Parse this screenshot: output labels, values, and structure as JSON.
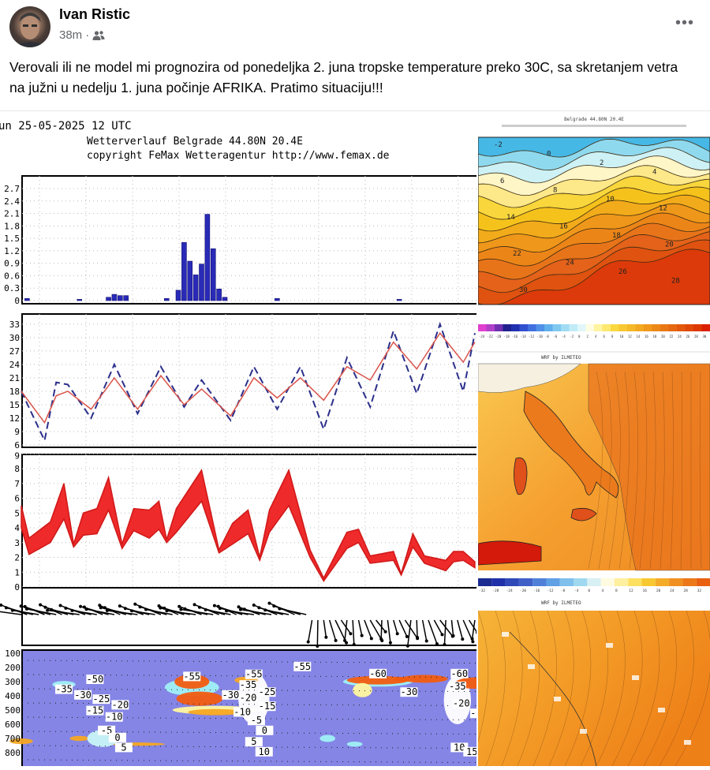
{
  "post": {
    "author": "Ivan Ristic",
    "time": "38m",
    "separator": "·",
    "audience_icon": "friends-icon",
    "more_icon": "more-icon",
    "more_label": "•••",
    "text": "Verovali ili ne model mi prognozira od ponedeljka 2. juna tropske temperature preko 30C, sa skretanjem vetra na južni u nedelju 1. juna počinje AFRIKA. Pratimo situaciju!!!"
  },
  "meteogram": {
    "run_line": "un 25-05-2025 12 UTC",
    "title_line": "Wetterverlauf Belgrade  44.80N 20.4E",
    "copyright_line": "copyright FeMax Wetteragentur http://www.femax.de"
  },
  "chart_data": [
    {
      "type": "bar",
      "ylim": [
        0,
        2.7
      ],
      "yticks": [
        "0",
        "0.3",
        "0.6",
        "0.9",
        "1.2",
        "1.5",
        "1.8",
        "2.1",
        "2.4",
        "2.7"
      ],
      "x_hours": [
        3,
        30,
        45,
        48,
        51,
        54,
        75,
        81,
        84,
        87,
        90,
        93,
        96,
        99,
        102,
        105,
        132,
        195
      ],
      "values": [
        0.05,
        0.03,
        0.08,
        0.15,
        0.12,
        0.12,
        0.05,
        0.25,
        1.4,
        0.95,
        0.62,
        0.88,
        2.08,
        1.25,
        0.28,
        0.08,
        0.05,
        0.03
      ],
      "color": "#2a2ab8"
    },
    {
      "type": "line",
      "ylim": [
        6,
        33
      ],
      "yticks": [
        "6",
        "9",
        "12",
        "15",
        "18",
        "21",
        "24",
        "27",
        "30",
        "33"
      ],
      "x_hours": [
        0,
        12,
        18,
        24,
        36,
        48,
        60,
        72,
        84,
        93,
        108,
        120,
        132,
        144,
        156,
        168,
        180,
        192,
        204,
        216,
        228,
        234
      ],
      "series": [
        {
          "style": "dashed",
          "color": "#2b2f8a",
          "values": [
            18,
            7,
            20,
            19.5,
            12,
            24,
            13,
            23.5,
            14.5,
            20.5,
            11.5,
            23.5,
            14,
            23.5,
            9.5,
            25.5,
            14.5,
            31.5,
            17.5,
            33,
            18,
            31
          ]
        },
        {
          "style": "solid",
          "color": "#d9534a",
          "values": [
            18,
            11,
            17,
            18,
            14,
            21,
            14,
            21.5,
            15,
            18.5,
            12.5,
            21,
            16.5,
            21,
            16,
            23.5,
            20.5,
            29,
            23,
            31,
            24.5,
            29
          ]
        }
      ]
    },
    {
      "type": "area",
      "ylim": [
        0,
        9
      ],
      "yticks": [
        "0",
        "1",
        "2",
        "3",
        "4",
        "5",
        "6",
        "7",
        "8",
        "9"
      ],
      "x_hours": [
        0,
        4,
        15,
        22,
        27,
        32,
        39,
        45,
        52,
        58,
        66,
        71,
        75,
        80,
        93,
        102,
        109,
        117,
        123,
        128,
        138,
        149,
        156,
        168,
        174,
        180,
        192,
        196,
        202,
        208,
        219,
        223,
        228,
        234
      ],
      "upper": [
        5.5,
        3.3,
        4.4,
        7,
        2.9,
        5,
        5.3,
        7.4,
        2.9,
        5.3,
        5.2,
        5.8,
        3.2,
        5.3,
        7.9,
        2.5,
        4.3,
        5.2,
        2.0,
        5.2,
        7.9,
        2.5,
        0.6,
        3.7,
        3.9,
        2.1,
        2.4,
        0.9,
        3.6,
        2.1,
        1.8,
        2.4,
        2.4,
        1.7
      ],
      "lower": [
        4,
        2.2,
        3.0,
        4.6,
        2.7,
        3.5,
        3.6,
        5.2,
        2.6,
        3.8,
        3.3,
        3.9,
        3.0,
        3.7,
        5.8,
        2.3,
        2.9,
        3.6,
        1.8,
        3.7,
        5.5,
        2.0,
        0.4,
        2.6,
        3.0,
        1.6,
        1.8,
        0.8,
        2.7,
        1.6,
        1.1,
        1.7,
        1.8,
        1.3
      ],
      "color": "#ee2a2a"
    },
    {
      "type": "heatmap",
      "yticks": [
        "100",
        "200",
        "300",
        "400",
        "500",
        "600",
        "700",
        "800"
      ],
      "labels": [
        {
          "text": "-50",
          "t": 38,
          "p": 300
        },
        {
          "text": "-35",
          "t": 22,
          "p": 370
        },
        {
          "text": "-30",
          "t": 22,
          "p": 410
        },
        {
          "text": "-25",
          "t": 38,
          "p": 440
        },
        {
          "text": "-20",
          "t": 38,
          "p": 480
        },
        {
          "text": "-15",
          "t": 38,
          "p": 520
        },
        {
          "text": "-10",
          "t": 30,
          "p": 565
        },
        {
          "text": "-5",
          "t": 44,
          "p": 660
        },
        {
          "text": "0",
          "t": 48,
          "p": 710
        },
        {
          "text": "5",
          "t": 48,
          "p": 780
        },
        {
          "text": "-55",
          "t": 88,
          "p": 280
        },
        {
          "text": "-30",
          "t": 108,
          "p": 410
        },
        {
          "text": "-55",
          "t": 120,
          "p": 265
        },
        {
          "text": "-35",
          "t": 117,
          "p": 340
        },
        {
          "text": "-25",
          "t": 117,
          "p": 390
        },
        {
          "text": "-20",
          "t": 117,
          "p": 430
        },
        {
          "text": "-15",
          "t": 117,
          "p": 490
        },
        {
          "text": "-10",
          "t": 114,
          "p": 530
        },
        {
          "text": "-5",
          "t": 118,
          "p": 590
        },
        {
          "text": "0",
          "t": 119,
          "p": 660
        },
        {
          "text": "5",
          "t": 120,
          "p": 740
        },
        {
          "text": "10",
          "t": 122,
          "p": 810
        },
        {
          "text": "-55",
          "t": 145,
          "p": 210
        },
        {
          "text": "-60",
          "t": 184,
          "p": 260
        },
        {
          "text": "-30",
          "t": 200,
          "p": 390
        },
        {
          "text": "-60",
          "t": 226,
          "p": 260
        },
        {
          "text": "-35",
          "t": 225,
          "p": 350
        },
        {
          "text": "-20",
          "t": 227,
          "p": 470
        },
        {
          "text": "-10",
          "t": 223,
          "p": 540
        },
        {
          "text": "10",
          "t": 226,
          "p": 780
        },
        {
          "text": "15",
          "t": 226,
          "p": 810
        }
      ]
    }
  ],
  "right_panel": {
    "cross_section": {
      "header": "Belgrade  44.80N 20.4E",
      "contour_labels": [
        "-2",
        "0",
        "2",
        "4",
        "6",
        "8",
        "10",
        "12",
        "14",
        "16",
        "18",
        "20",
        "22",
        "24",
        "26",
        "28",
        "30"
      ],
      "colorbar_ticks": [
        "-24",
        "-22",
        "-20",
        "-18",
        "-16",
        "-14",
        "-12",
        "-10",
        "-8",
        "-6",
        "-4",
        "-2",
        "0",
        "2",
        "4",
        "6",
        "8",
        "10",
        "12",
        "14",
        "16",
        "18",
        "20",
        "22",
        "24",
        "26",
        "28",
        "30"
      ]
    },
    "map1": {
      "source": "WRF by ILMETEO"
    },
    "map2": {
      "source": "WRF by ILMETEO",
      "colorbar_ticks": [
        "-32",
        "-28",
        "-24",
        "-20",
        "-16",
        "-12",
        "-8",
        "-4",
        "0",
        "4",
        "8",
        "12",
        "16",
        "20",
        "24",
        "28",
        "32"
      ]
    }
  }
}
